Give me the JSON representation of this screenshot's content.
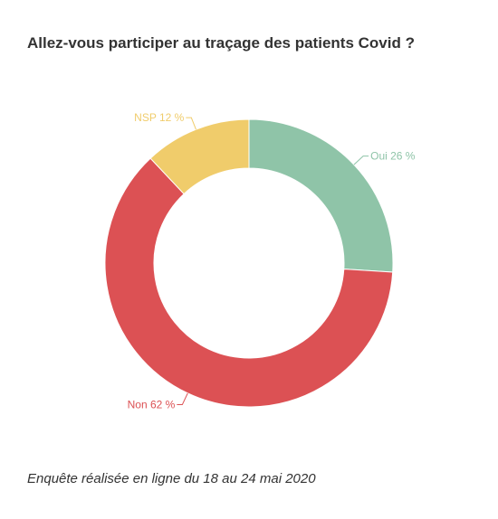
{
  "title": "Allez-vous participer au traçage des patients Covid ?",
  "footnote": "Enquête réalisée en ligne du 18 au 24 mai 2020",
  "chart_data": {
    "type": "pie",
    "donut": true,
    "slices": [
      {
        "label": "Oui 26 %",
        "name": "Oui",
        "value": 26,
        "color": "#8fc4a8"
      },
      {
        "label": "Non 62 %",
        "name": "Non",
        "value": 62,
        "color": "#dc5154"
      },
      {
        "label": "NSP 12 %",
        "name": "NSP",
        "value": 12,
        "color": "#f0cc6b"
      }
    ]
  }
}
